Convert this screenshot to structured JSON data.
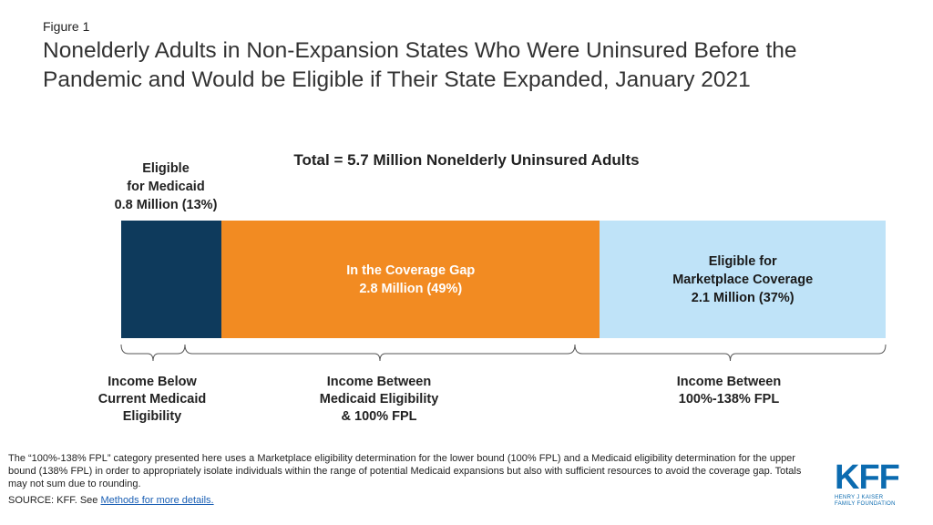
{
  "figure_label": "Figure 1",
  "title": "Nonelderly Adults in Non-Expansion States Who Were Uninsured Before the Pandemic and Would be Eligible if Their State Expanded, January 2021",
  "chart_data": {
    "type": "bar",
    "subtype": "stacked-horizontal-100",
    "title": "Total = 5.7 Million Nonelderly Uninsured Adults",
    "total_millions": 5.7,
    "segments": [
      {
        "name": "Eligible for Medicaid",
        "label_lines": [
          "Eligible",
          "for Medicaid",
          "0.8 Million  (13%)"
        ],
        "value_millions": 0.8,
        "percent": 13,
        "color": "#0e3a5c",
        "income_label_lines": [
          "Income Below",
          "Current Medicaid",
          "Eligibility"
        ]
      },
      {
        "name": "In the Coverage Gap",
        "label_lines": [
          "In the Coverage Gap",
          "2.8 Million  (49%)"
        ],
        "value_millions": 2.8,
        "percent": 49,
        "color": "#f28b22",
        "income_label_lines": [
          "Income Between",
          "Medicaid Eligibility",
          "& 100% FPL"
        ]
      },
      {
        "name": "Eligible for Marketplace Coverage",
        "label_lines": [
          "Eligible  for",
          "Marketplace Coverage",
          "2.1 Million  (37%)"
        ],
        "value_millions": 2.1,
        "percent": 37,
        "color": "#bfe3f8",
        "income_label_lines": [
          "Income Between",
          "100%-138% FPL"
        ]
      }
    ]
  },
  "footnote": "The “100%-138% FPL” category presented here uses a Marketplace eligibility determination for the lower bound (100% FPL) and a Medicaid eligibility determination for the upper bound (138% FPL) in order to appropriately isolate individuals within the range of potential Medicaid expansions but also with sufficient resources to avoid the coverage gap. Totals may not sum due to rounding.",
  "source_prefix": "SOURCE: KFF. See ",
  "source_link": "Methods for more details.",
  "logo": {
    "main": "KFF",
    "sub_line1": "HENRY J KAISER",
    "sub_line2": "FAMILY FOUNDATION"
  }
}
